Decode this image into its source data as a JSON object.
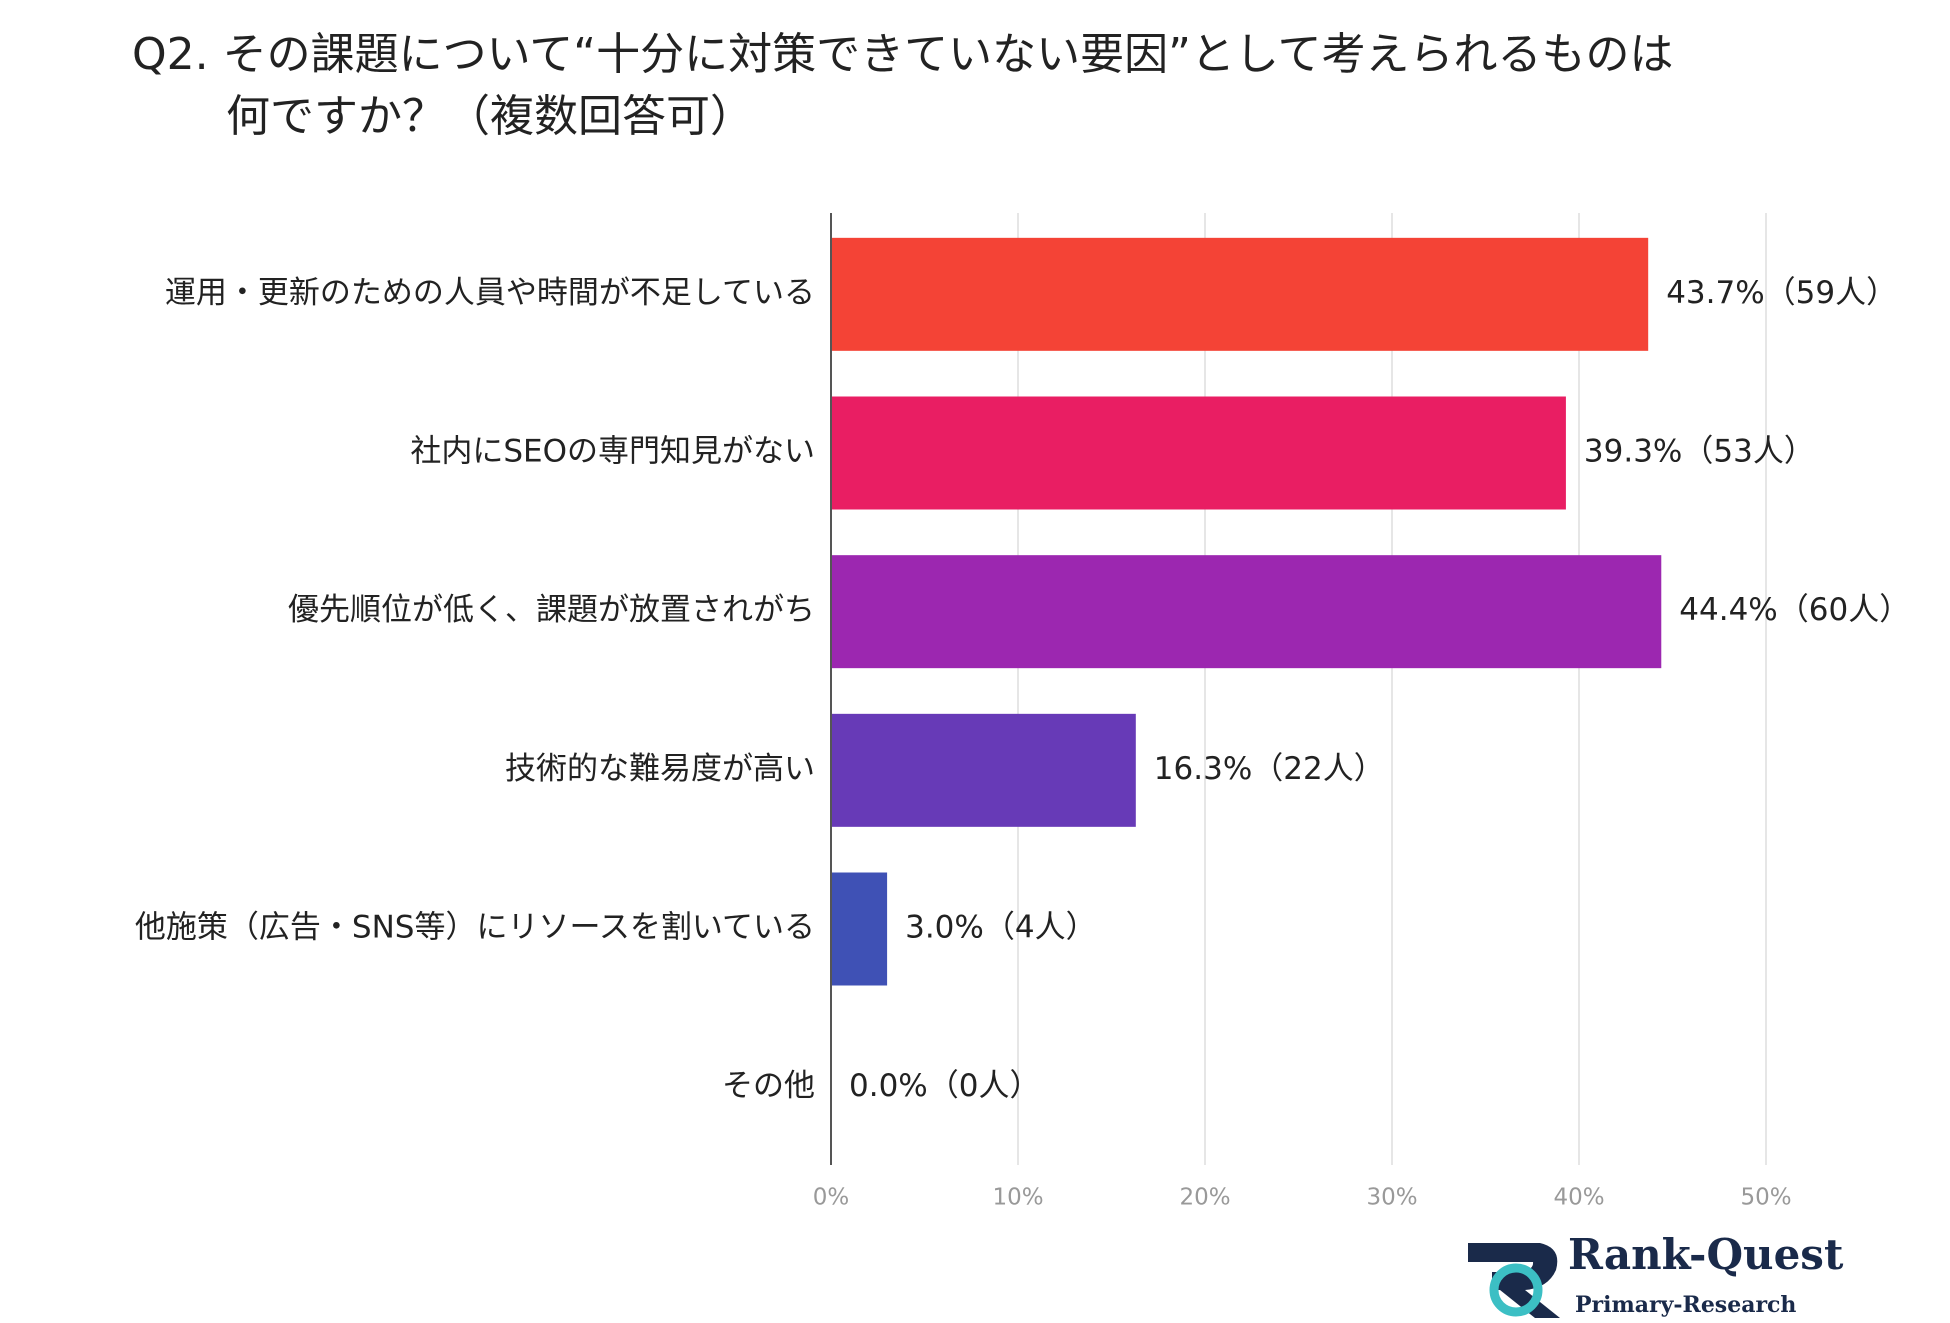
{
  "chart_data": {
    "type": "bar",
    "orientation": "horizontal",
    "title": [
      "Q2. その課題について“十分に対策できていない要因”として考えられるものは",
      "何ですか？（複数回答可）"
    ],
    "categories": [
      "運用・更新のための人員や時間が不足している",
      "社内にSEOの専門知見がない",
      "優先順位が低く、課題が放置されがち",
      "技術的な難易度が高い",
      "他施策（広告・SNS等）にリソースを割いている",
      "その他"
    ],
    "values": [
      43.7,
      39.3,
      44.4,
      16.3,
      3.0,
      0.0
    ],
    "value_labels": [
      "43.7%（59人）",
      "39.3%（53人）",
      "44.4%（60人）",
      "16.3%（22人）",
      "3.0%（4人）",
      "0.0%（0人）"
    ],
    "colors": [
      "#f44336",
      "#e91e63",
      "#9c27b0",
      "#673ab7",
      "#3f51b5",
      "#2196f3"
    ],
    "xlim": [
      0,
      50
    ],
    "xticks": [
      {
        "value": 0,
        "label": "0%"
      },
      {
        "value": 10,
        "label": "10%"
      },
      {
        "value": 20,
        "label": "20%"
      },
      {
        "value": 30,
        "label": "30%"
      },
      {
        "value": 40,
        "label": "40%"
      },
      {
        "value": 50,
        "label": "50%"
      }
    ],
    "grid": true
  },
  "logo": {
    "name": "Rank-Quest",
    "tagline": "Primary-Research"
  }
}
